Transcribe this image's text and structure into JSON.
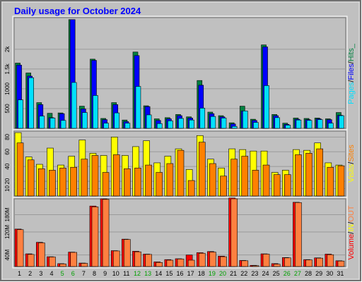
{
  "chart_data": {
    "type": "bar",
    "title": "Daily usage for October 2024",
    "categories": [
      "1",
      "2",
      "3",
      "4",
      "5",
      "6",
      "7",
      "8",
      "9",
      "10",
      "11",
      "12",
      "13",
      "14",
      "15",
      "16",
      "17",
      "18",
      "19",
      "20",
      "21",
      "22",
      "23",
      "24",
      "25",
      "26",
      "27",
      "28",
      "29",
      "30",
      "31"
    ],
    "weekend_days": [
      "5",
      "6",
      "12",
      "13",
      "19",
      "20",
      "26",
      "27"
    ],
    "colors": {
      "background": "#c0c0c0",
      "title": "#0000ff",
      "weekend_label": "#00a000",
      "weekday_label": "#000000",
      "hits": "#008040",
      "files": "#0000ff",
      "pages": "#00e0ff",
      "visits": "#ffff00",
      "sites": "#ff8000",
      "kbytes": "#ff0000",
      "kbytes_in": "#ff8040",
      "kbytes_out": "#ffff00"
    },
    "panels": [
      {
        "id": "hits-files-pages",
        "ylim": [
          0,
          2800
        ],
        "yticks": [
          {
            "label": "500",
            "value": 500
          },
          {
            "label": "1000",
            "value": 1000
          },
          {
            "label": "1.5k",
            "value": 1500
          },
          {
            "label": "2k",
            "value": 2000
          }
        ],
        "legend": [
          {
            "text": "Pages",
            "color_key": "pages"
          },
          {
            "text": "/",
            "color_key": "weekday_label"
          },
          {
            "text": "Files",
            "color_key": "files"
          },
          {
            "text": "/",
            "color_key": "weekday_label"
          },
          {
            "text": "Hits_",
            "color_key": "hits"
          }
        ],
        "series": [
          {
            "name": "Hits",
            "color_key": "hits",
            "values": [
              1650,
              1400,
              650,
              380,
              390,
              2750,
              560,
              1750,
              250,
              650,
              210,
              1930,
              570,
              240,
              270,
              350,
              290,
              1210,
              410,
              320,
              140,
              560,
              230,
              2110,
              350,
              130,
              260,
              250,
              260,
              240,
              400
            ]
          },
          {
            "name": "Files",
            "color_key": "files",
            "values": [
              1600,
              1320,
              600,
              270,
              370,
              2750,
              490,
              1720,
              220,
              600,
              170,
              1840,
              550,
              200,
              240,
              320,
              260,
              1090,
              370,
              290,
              110,
              440,
              200,
              2060,
              320,
              100,
              230,
              220,
              240,
              220,
              330
            ]
          },
          {
            "name": "Pages",
            "color_key": "pages",
            "values": [
              720,
              1280,
              310,
              260,
              200,
              1160,
              400,
              830,
              130,
              390,
              130,
              1060,
              340,
              120,
              190,
              250,
              210,
              510,
              300,
              260,
              50,
              440,
              150,
              1080,
              270,
              80,
              210,
              200,
              220,
              130,
              320
            ]
          }
        ]
      },
      {
        "id": "visits-sites",
        "ylim": [
          0,
          88
        ],
        "yticks": [
          {
            "label": "10",
            "value": 10
          },
          {
            "label": "20",
            "value": 20
          },
          {
            "label": "40",
            "value": 40
          },
          {
            "label": "60",
            "value": 60
          },
          {
            "label": "80",
            "value": 80
          }
        ],
        "legend": [
          {
            "text": "Visits",
            "color_key": "visits"
          },
          {
            "text": "/",
            "color_key": "weekday_label"
          },
          {
            "text": "Sites",
            "color_key": "sites"
          }
        ],
        "series": [
          {
            "name": "Visits",
            "color_key": "visits",
            "values": [
              86,
              53,
              43,
              65,
              42,
              54,
              76,
              58,
              55,
              80,
              55,
              67,
              75,
              45,
              54,
              64,
              36,
              82,
              50,
              38,
              64,
              63,
              61,
              61,
              32,
              35,
              63,
              62,
              72,
              45,
              42
            ]
          },
          {
            "name": "Sites",
            "color_key": "sites",
            "values": [
              72,
              49,
              37,
              35,
              38,
              39,
              50,
              55,
              32,
              56,
              37,
              38,
              42,
              32,
              44,
              62,
              21,
              73,
              44,
              27,
              50,
              54,
              35,
              42,
              29,
              29,
              56,
              58,
              64,
              39,
              41
            ]
          }
        ]
      },
      {
        "id": "volume",
        "ylim": [
          0,
          235
        ],
        "yticks": [
          {
            "label": "40M",
            "value": 40
          },
          {
            "label": "120M",
            "value": 120
          },
          {
            "label": "180M",
            "value": 180
          }
        ],
        "legend": [
          {
            "text": "Volume",
            "color_key": "kbytes"
          },
          {
            "text": "/",
            "color_key": "weekday_label"
          },
          {
            "text": "IN",
            "color_key": "kbytes_out"
          },
          {
            "text": "/",
            "color_key": "weekday_label"
          },
          {
            "text": "OUT",
            "color_key": "kbytes_in"
          }
        ],
        "series": [
          {
            "name": "Volume",
            "color_key": "kbytes",
            "values": [
              130,
              44,
              84,
              34,
              10,
              50,
              12,
              210,
              235,
              55,
              95,
              53,
              43,
              16,
              24,
              27,
              40,
              48,
              52,
              36,
              238,
              21,
              4,
              44,
              10,
              31,
              223,
              24,
              30,
              43,
              20
            ]
          },
          {
            "name": "OUT",
            "color_key": "kbytes_in",
            "values": [
              128,
              42,
              82,
              33,
              9,
              49,
              11,
              207,
              233,
              54,
              94,
              51,
              42,
              14,
              22,
              26,
              22,
              46,
              50,
              34,
              235,
              20,
              3,
              43,
              8,
              30,
              222,
              23,
              29,
              41,
              19
            ]
          }
        ]
      }
    ]
  }
}
